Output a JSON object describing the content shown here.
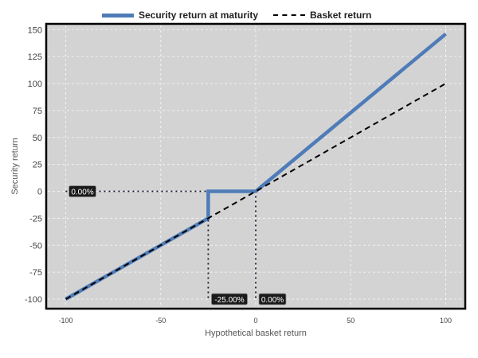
{
  "chart_data": {
    "type": "line",
    "xlabel": "Hypothetical basket return",
    "ylabel": "Security return",
    "xlim": [
      -110,
      110
    ],
    "ylim": [
      -110,
      155
    ],
    "x_ticks": [
      -100,
      -50,
      0,
      50,
      100
    ],
    "y_ticks": [
      150,
      125,
      100,
      75,
      50,
      25,
      0,
      -25,
      -50,
      -75,
      -100
    ],
    "grid": true,
    "legend_position": "top",
    "series": [
      {
        "name": "Security return at maturity",
        "style": "solid",
        "color": "#4f7cb8",
        "x": [
          -100,
          -25,
          -25,
          0,
          100
        ],
        "y": [
          -100,
          -25,
          0,
          0,
          146
        ]
      },
      {
        "name": "Basket return",
        "style": "dashed",
        "color": "#000000",
        "x": [
          -100,
          100
        ],
        "y": [
          -100,
          100
        ]
      }
    ],
    "annotations": [
      {
        "text": "0.00%",
        "x": -100,
        "y": 0
      },
      {
        "text": "-25.00%",
        "x": -25,
        "y": -100
      },
      {
        "text": "0.00%",
        "x": 0,
        "y": -100
      }
    ],
    "reference_lines": [
      {
        "from": [
          -100,
          0
        ],
        "to": [
          -25,
          0
        ]
      },
      {
        "from": [
          -25,
          0
        ],
        "to": [
          -25,
          -100
        ]
      },
      {
        "from": [
          0,
          0
        ],
        "to": [
          0,
          -100
        ]
      }
    ]
  }
}
